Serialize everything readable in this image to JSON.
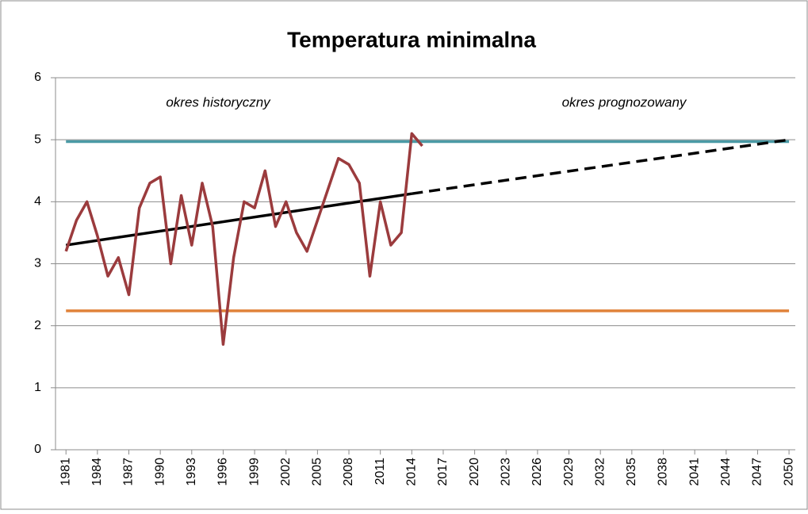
{
  "chart_data": {
    "type": "line",
    "title": "Temperatura minimalna",
    "annotations": [
      "okres historyczny",
      "okres prognozowany"
    ],
    "xlim": [
      1980,
      2050.6
    ],
    "xticks": [
      1981,
      1984,
      1987,
      1990,
      1993,
      1996,
      1999,
      2002,
      2005,
      2008,
      2011,
      2014,
      2017,
      2020,
      2023,
      2026,
      2029,
      2032,
      2035,
      2038,
      2041,
      2044,
      2047,
      2050
    ],
    "ylim": [
      0,
      6
    ],
    "yticks": [
      0,
      1,
      2,
      3,
      4,
      5,
      6
    ],
    "grid": true,
    "series": [
      {
        "color": "#4a9aa5",
        "x": [
          1981,
          2050
        ],
        "values": [
          4.97,
          4.97
        ]
      },
      {
        "color": "#e0823a",
        "x": [
          1981,
          2050
        ],
        "values": [
          2.24,
          2.24
        ]
      },
      {
        "color": "#000000",
        "x": [
          1981,
          2014
        ],
        "values": [
          3.3,
          4.13
        ]
      },
      {
        "color": "#000000",
        "dashed": true,
        "x": [
          2014,
          2050
        ],
        "values": [
          4.13,
          5.0
        ]
      },
      {
        "color": "#9b3b3d",
        "x": [
          1981,
          1982,
          1983,
          1984,
          1985,
          1986,
          1987,
          1988,
          1989,
          1990,
          1991,
          1992,
          1993,
          1994,
          1995,
          1996,
          1997,
          1998,
          1999,
          2000,
          2001,
          2002,
          2003,
          2004,
          2005,
          2006,
          2007,
          2008,
          2009,
          2010,
          2011,
          2012,
          2013,
          2014,
          2015
        ],
        "values": [
          3.2,
          3.7,
          4.0,
          3.45,
          2.8,
          3.1,
          2.5,
          3.9,
          4.3,
          4.4,
          3.0,
          4.1,
          3.3,
          4.3,
          3.6,
          1.7,
          3.1,
          4.0,
          3.9,
          4.5,
          3.6,
          4.0,
          3.5,
          3.2,
          3.7,
          4.2,
          4.7,
          4.6,
          4.3,
          2.8,
          4.0,
          3.3,
          3.5,
          5.1,
          4.9
        ]
      }
    ]
  }
}
